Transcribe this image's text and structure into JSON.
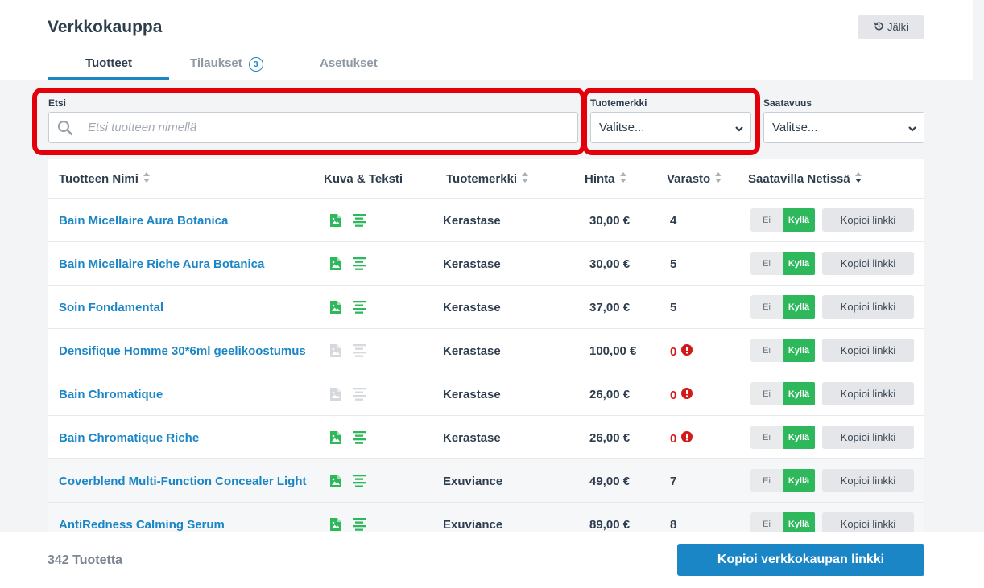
{
  "app": {
    "title": "Verkkokauppa",
    "history_label": "Jälki"
  },
  "tabs": [
    {
      "label": "Tuotteet",
      "active": true
    },
    {
      "label": "Tilaukset",
      "badge": "3"
    },
    {
      "label": "Asetukset"
    }
  ],
  "filters": {
    "search_label": "Etsi",
    "search_placeholder": "Etsi tuotteen nimellä",
    "brand_label": "Tuotemerkki",
    "brand_value": "Valitse...",
    "availability_label": "Saatavuus",
    "availability_value": "Valitse..."
  },
  "table": {
    "headers": {
      "name": "Tuotteen Nimi",
      "media": "Kuva & Teksti",
      "brand": "Tuotemerkki",
      "price": "Hinta",
      "stock": "Varasto",
      "online": "Saatavilla Netissä"
    },
    "toggle_off": "Ei",
    "toggle_on": "Kyllä",
    "copy_label": "Kopioi linkki",
    "rows": [
      {
        "name": "Bain Micellaire Aura Botanica",
        "brand": "Kerastase",
        "price": "30,00 €",
        "stock": "4",
        "has_image": true,
        "has_text": true
      },
      {
        "name": "Bain Micellaire Riche Aura Botanica",
        "brand": "Kerastase",
        "price": "30,00 €",
        "stock": "5",
        "has_image": true,
        "has_text": true
      },
      {
        "name": "Soin Fondamental",
        "brand": "Kerastase",
        "price": "37,00 €",
        "stock": "5",
        "has_image": true,
        "has_text": true
      },
      {
        "name": "Densifique Homme 30*6ml geelikoostumus",
        "brand": "Kerastase",
        "price": "100,00 €",
        "stock": "0",
        "has_image": false,
        "has_text": false
      },
      {
        "name": "Bain Chromatique",
        "brand": "Kerastase",
        "price": "26,00 €",
        "stock": "0",
        "has_image": false,
        "has_text": false
      },
      {
        "name": "Bain Chromatique Riche",
        "brand": "Kerastase",
        "price": "26,00 €",
        "stock": "0",
        "has_image": true,
        "has_text": true
      },
      {
        "name": "Coverblend Multi-Function Concealer Light",
        "brand": "Exuviance",
        "price": "49,00 €",
        "stock": "7",
        "has_image": true,
        "has_text": true
      },
      {
        "name": "AntiRedness Calming Serum",
        "brand": "Exuviance",
        "price": "89,00 €",
        "stock": "8",
        "has_image": true,
        "has_text": true
      }
    ]
  },
  "footer": {
    "count": "342 Tuotetta",
    "copy_shop_label": "Kopioi verkkokaupan linkki"
  },
  "colors": {
    "accent": "#1b86c6",
    "active_green": "#2eb85c",
    "icon_gray": "#d5d8dc",
    "error_red": "#d11a1a",
    "highlight_red": "#e3000b"
  }
}
